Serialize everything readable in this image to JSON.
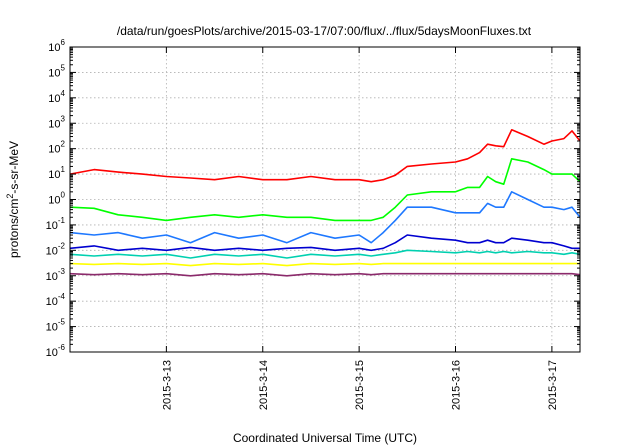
{
  "chart_data": {
    "type": "line",
    "title": "/data/run/goesPlots/archive/2015-03-17/07:00/flux/../flux/5daysMoonFluxes.txt",
    "xlabel": "Coordinated Universal Time (UTC)",
    "ylabel": {
      "base": "protons/cm",
      "sup": "2",
      "rest": "-s-sr-MeV"
    },
    "xscale": "time",
    "yscale": "log",
    "xlim": [
      "2015-03-12 00:00",
      "2015-03-17 07:00"
    ],
    "ylim": [
      1e-06,
      1000000.0
    ],
    "grid": true,
    "legend": "none",
    "x_ticks": [
      "2015-3-13",
      "2015-3-14",
      "2015-3-15",
      "2015-3-16",
      "2015-3-17"
    ],
    "y_ticks": [
      {
        "base": "10",
        "exp": "-6"
      },
      {
        "base": "10",
        "exp": "-5"
      },
      {
        "base": "10",
        "exp": "-4"
      },
      {
        "base": "10",
        "exp": "-3"
      },
      {
        "base": "10",
        "exp": "-2"
      },
      {
        "base": "10",
        "exp": "-1"
      },
      {
        "base": "10",
        "exp": "0"
      },
      {
        "base": "10",
        "exp": "1"
      },
      {
        "base": "10",
        "exp": "2"
      },
      {
        "base": "10",
        "exp": "3"
      },
      {
        "base": "10",
        "exp": "4"
      },
      {
        "base": "10",
        "exp": "5"
      },
      {
        "base": "10",
        "exp": "6"
      }
    ],
    "series": [
      {
        "color": "#ff0000",
        "x": [
          "2015-03-12 00:00",
          "2015-03-12 06:00",
          "2015-03-12 12:00",
          "2015-03-12 18:00",
          "2015-03-13 00:00",
          "2015-03-13 06:00",
          "2015-03-13 12:00",
          "2015-03-13 18:00",
          "2015-03-14 00:00",
          "2015-03-14 06:00",
          "2015-03-14 12:00",
          "2015-03-14 18:00",
          "2015-03-15 00:00",
          "2015-03-15 03:00",
          "2015-03-15 06:00",
          "2015-03-15 09:00",
          "2015-03-15 12:00",
          "2015-03-15 18:00",
          "2015-03-16 00:00",
          "2015-03-16 03:00",
          "2015-03-16 06:00",
          "2015-03-16 08:00",
          "2015-03-16 10:00",
          "2015-03-16 12:00",
          "2015-03-16 14:00",
          "2015-03-16 18:00",
          "2015-03-16 22:00",
          "2015-03-17 00:00",
          "2015-03-17 03:00",
          "2015-03-17 05:00",
          "2015-03-17 07:00"
        ],
        "y": [
          10,
          15,
          12,
          10,
          8,
          7,
          6,
          8,
          6,
          6,
          8,
          6,
          6,
          5,
          6,
          9,
          20,
          25,
          30,
          40,
          70,
          150,
          130,
          120,
          550,
          300,
          150,
          200,
          250,
          500,
          200
        ]
      },
      {
        "color": "#00ff00",
        "x": [
          "2015-03-12 00:00",
          "2015-03-12 06:00",
          "2015-03-12 12:00",
          "2015-03-12 18:00",
          "2015-03-13 00:00",
          "2015-03-13 06:00",
          "2015-03-13 12:00",
          "2015-03-13 18:00",
          "2015-03-14 00:00",
          "2015-03-14 06:00",
          "2015-03-14 12:00",
          "2015-03-14 18:00",
          "2015-03-15 00:00",
          "2015-03-15 03:00",
          "2015-03-15 06:00",
          "2015-03-15 09:00",
          "2015-03-15 12:00",
          "2015-03-15 18:00",
          "2015-03-16 00:00",
          "2015-03-16 03:00",
          "2015-03-16 06:00",
          "2015-03-16 08:00",
          "2015-03-16 10:00",
          "2015-03-16 12:00",
          "2015-03-16 14:00",
          "2015-03-16 18:00",
          "2015-03-16 22:00",
          "2015-03-17 00:00",
          "2015-03-17 03:00",
          "2015-03-17 05:00",
          "2015-03-17 07:00"
        ],
        "y": [
          0.5,
          0.45,
          0.25,
          0.2,
          0.15,
          0.2,
          0.25,
          0.2,
          0.25,
          0.2,
          0.2,
          0.15,
          0.15,
          0.15,
          0.2,
          0.5,
          1.5,
          2,
          2,
          3,
          3,
          8,
          5,
          4,
          40,
          30,
          15,
          10,
          10,
          10,
          5
        ]
      },
      {
        "color": "#1e78ff",
        "x": [
          "2015-03-12 00:00",
          "2015-03-12 06:00",
          "2015-03-12 12:00",
          "2015-03-12 18:00",
          "2015-03-13 00:00",
          "2015-03-13 06:00",
          "2015-03-13 12:00",
          "2015-03-13 18:00",
          "2015-03-14 00:00",
          "2015-03-14 06:00",
          "2015-03-14 12:00",
          "2015-03-14 18:00",
          "2015-03-15 00:00",
          "2015-03-15 03:00",
          "2015-03-15 06:00",
          "2015-03-15 09:00",
          "2015-03-15 12:00",
          "2015-03-15 18:00",
          "2015-03-16 00:00",
          "2015-03-16 03:00",
          "2015-03-16 06:00",
          "2015-03-16 08:00",
          "2015-03-16 10:00",
          "2015-03-16 12:00",
          "2015-03-16 14:00",
          "2015-03-16 18:00",
          "2015-03-16 22:00",
          "2015-03-17 00:00",
          "2015-03-17 03:00",
          "2015-03-17 05:00",
          "2015-03-17 07:00"
        ],
        "y": [
          0.05,
          0.04,
          0.05,
          0.03,
          0.04,
          0.02,
          0.05,
          0.03,
          0.04,
          0.02,
          0.05,
          0.03,
          0.04,
          0.02,
          0.05,
          0.15,
          0.5,
          0.5,
          0.3,
          0.3,
          0.3,
          0.7,
          0.5,
          0.5,
          2,
          1,
          0.5,
          0.5,
          0.4,
          0.5,
          0.2
        ]
      },
      {
        "color": "#0000d0",
        "x": [
          "2015-03-12 00:00",
          "2015-03-12 06:00",
          "2015-03-12 12:00",
          "2015-03-12 18:00",
          "2015-03-13 00:00",
          "2015-03-13 06:00",
          "2015-03-13 12:00",
          "2015-03-13 18:00",
          "2015-03-14 00:00",
          "2015-03-14 06:00",
          "2015-03-14 12:00",
          "2015-03-14 18:00",
          "2015-03-15 00:00",
          "2015-03-15 03:00",
          "2015-03-15 06:00",
          "2015-03-15 09:00",
          "2015-03-15 12:00",
          "2015-03-15 18:00",
          "2015-03-16 00:00",
          "2015-03-16 03:00",
          "2015-03-16 06:00",
          "2015-03-16 08:00",
          "2015-03-16 10:00",
          "2015-03-16 12:00",
          "2015-03-16 14:00",
          "2015-03-16 18:00",
          "2015-03-16 22:00",
          "2015-03-17 00:00",
          "2015-03-17 03:00",
          "2015-03-17 05:00",
          "2015-03-17 07:00"
        ],
        "y": [
          0.012,
          0.015,
          0.01,
          0.012,
          0.01,
          0.013,
          0.01,
          0.012,
          0.01,
          0.012,
          0.013,
          0.01,
          0.012,
          0.01,
          0.012,
          0.02,
          0.04,
          0.03,
          0.025,
          0.02,
          0.02,
          0.025,
          0.02,
          0.02,
          0.03,
          0.025,
          0.02,
          0.02,
          0.015,
          0.012,
          0.012
        ]
      },
      {
        "color": "#00d0b0",
        "x": [
          "2015-03-12 00:00",
          "2015-03-12 06:00",
          "2015-03-12 12:00",
          "2015-03-12 18:00",
          "2015-03-13 00:00",
          "2015-03-13 06:00",
          "2015-03-13 12:00",
          "2015-03-13 18:00",
          "2015-03-14 00:00",
          "2015-03-14 06:00",
          "2015-03-14 12:00",
          "2015-03-14 18:00",
          "2015-03-15 00:00",
          "2015-03-15 03:00",
          "2015-03-15 06:00",
          "2015-03-15 09:00",
          "2015-03-15 12:00",
          "2015-03-15 18:00",
          "2015-03-16 00:00",
          "2015-03-16 03:00",
          "2015-03-16 06:00",
          "2015-03-16 08:00",
          "2015-03-16 10:00",
          "2015-03-16 12:00",
          "2015-03-16 14:00",
          "2015-03-16 18:00",
          "2015-03-16 22:00",
          "2015-03-17 00:00",
          "2015-03-17 03:00",
          "2015-03-17 05:00",
          "2015-03-17 07:00"
        ],
        "y": [
          0.007,
          0.006,
          0.007,
          0.006,
          0.007,
          0.005,
          0.007,
          0.006,
          0.007,
          0.005,
          0.007,
          0.006,
          0.007,
          0.006,
          0.007,
          0.008,
          0.01,
          0.009,
          0.008,
          0.009,
          0.008,
          0.009,
          0.008,
          0.009,
          0.008,
          0.009,
          0.008,
          0.008,
          0.007,
          0.008,
          0.007
        ]
      },
      {
        "color": "#ffff00",
        "x": [
          "2015-03-12 00:00",
          "2015-03-12 06:00",
          "2015-03-12 12:00",
          "2015-03-12 18:00",
          "2015-03-13 00:00",
          "2015-03-13 06:00",
          "2015-03-13 12:00",
          "2015-03-13 18:00",
          "2015-03-14 00:00",
          "2015-03-14 06:00",
          "2015-03-14 12:00",
          "2015-03-14 18:00",
          "2015-03-15 00:00",
          "2015-03-15 03:00",
          "2015-03-15 06:00",
          "2015-03-15 09:00",
          "2015-03-15 12:00",
          "2015-03-15 18:00",
          "2015-03-16 00:00",
          "2015-03-16 03:00",
          "2015-03-16 06:00",
          "2015-03-16 08:00",
          "2015-03-16 10:00",
          "2015-03-16 12:00",
          "2015-03-16 14:00",
          "2015-03-16 18:00",
          "2015-03-16 22:00",
          "2015-03-17 00:00",
          "2015-03-17 03:00",
          "2015-03-17 05:00",
          "2015-03-17 07:00"
        ],
        "y": [
          0.003,
          0.0028,
          0.003,
          0.0028,
          0.003,
          0.0025,
          0.003,
          0.0028,
          0.003,
          0.0025,
          0.003,
          0.0028,
          0.003,
          0.0028,
          0.003,
          0.003,
          0.003,
          0.003,
          0.003,
          0.003,
          0.003,
          0.003,
          0.003,
          0.003,
          0.003,
          0.003,
          0.003,
          0.003,
          0.003,
          0.003,
          0.003
        ]
      },
      {
        "color": "#8b2a6b",
        "x": [
          "2015-03-12 00:00",
          "2015-03-12 06:00",
          "2015-03-12 12:00",
          "2015-03-12 18:00",
          "2015-03-13 00:00",
          "2015-03-13 06:00",
          "2015-03-13 12:00",
          "2015-03-13 18:00",
          "2015-03-14 00:00",
          "2015-03-14 06:00",
          "2015-03-14 12:00",
          "2015-03-14 18:00",
          "2015-03-15 00:00",
          "2015-03-15 03:00",
          "2015-03-15 06:00",
          "2015-03-15 09:00",
          "2015-03-15 12:00",
          "2015-03-15 18:00",
          "2015-03-16 00:00",
          "2015-03-16 03:00",
          "2015-03-16 06:00",
          "2015-03-16 08:00",
          "2015-03-16 10:00",
          "2015-03-16 12:00",
          "2015-03-16 14:00",
          "2015-03-16 18:00",
          "2015-03-16 22:00",
          "2015-03-17 00:00",
          "2015-03-17 03:00",
          "2015-03-17 05:00",
          "2015-03-17 07:00"
        ],
        "y": [
          0.0012,
          0.0011,
          0.0012,
          0.0011,
          0.0012,
          0.001,
          0.0012,
          0.0011,
          0.0012,
          0.001,
          0.0012,
          0.0011,
          0.0012,
          0.0011,
          0.0012,
          0.0012,
          0.0012,
          0.0012,
          0.0012,
          0.0012,
          0.0012,
          0.0012,
          0.0012,
          0.0012,
          0.0012,
          0.0012,
          0.0012,
          0.0012,
          0.0012,
          0.0012,
          0.0011
        ]
      }
    ]
  }
}
